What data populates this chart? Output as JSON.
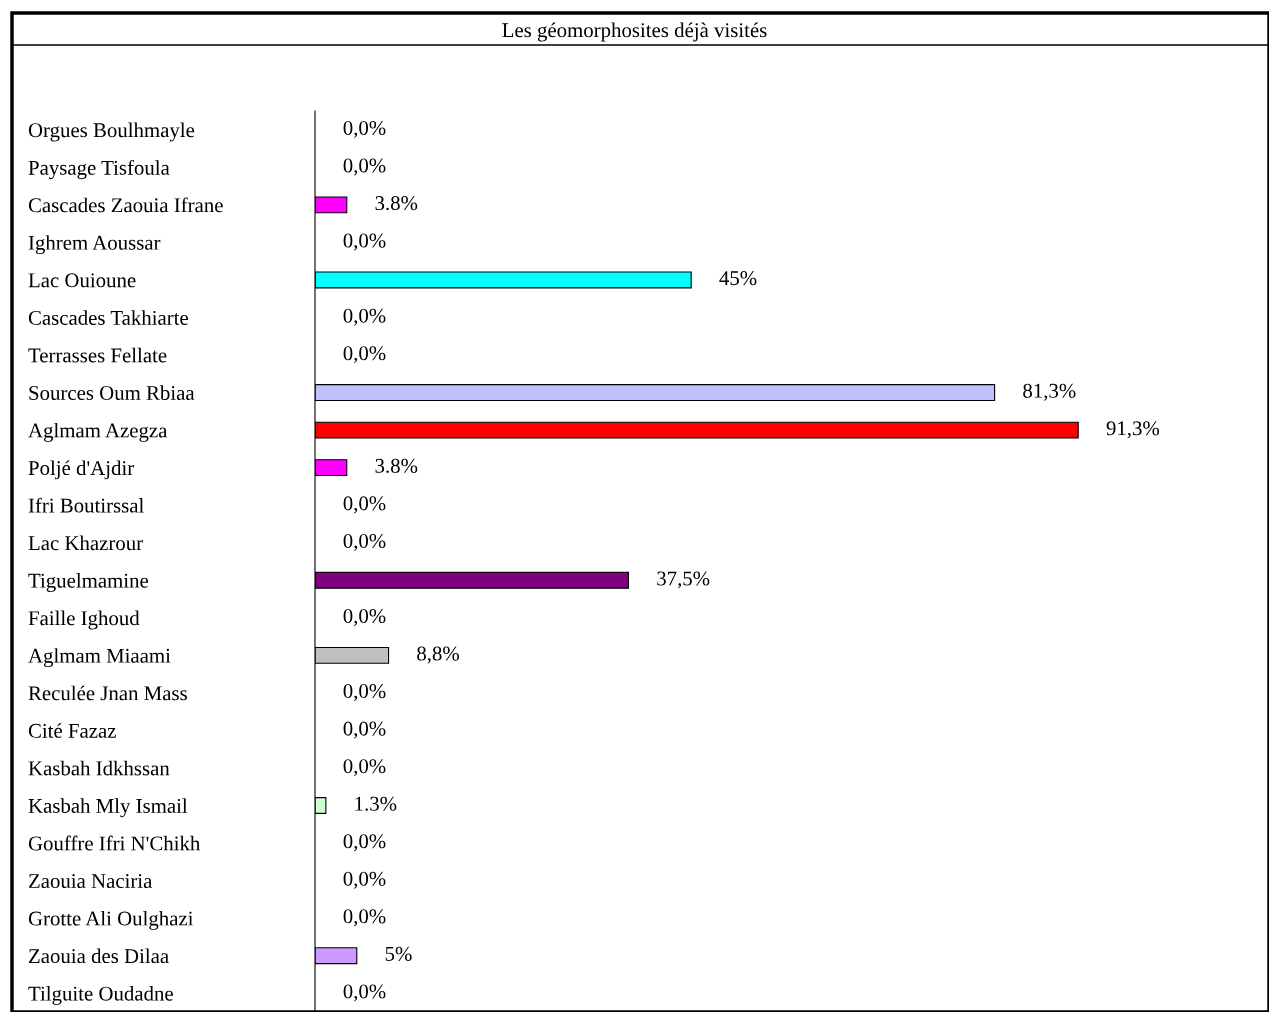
{
  "chart_data": {
    "type": "bar",
    "orientation": "horizontal",
    "title": "Les géomorphosites déjà visités",
    "categories": [
      "Orgues Boulhmayle",
      "Paysage Tisfoula",
      "Cascades Zaouia Ifrane",
      "Ighrem Aoussar",
      "Lac Ouioune",
      "Cascades Takhiarte",
      "Terrasses Fellate",
      "Sources Oum Rbiaa",
      "Aglmam Azegza",
      "Poljé d'Ajdir",
      "Ifri Boutirssal",
      "Lac Khazrour",
      "Tiguelmamine",
      "Faille Ighoud",
      "Aglmam Miaami",
      "Reculée Jnan Mass",
      "Cité Fazaz",
      "Kasbah Idkhssan",
      "Kasbah Mly Ismail",
      "Gouffre Ifri N'Chikh",
      "Zaouia Naciria",
      "Grotte Ali Oulghazi",
      "Zaouia des Dilaa",
      "Tilguite Oudadne"
    ],
    "values": [
      0,
      0,
      3.8,
      0,
      45,
      0,
      0,
      81.3,
      91.3,
      3.8,
      0,
      0,
      37.5,
      0,
      8.8,
      0,
      0,
      0,
      1.3,
      0,
      0,
      0,
      5,
      0
    ],
    "value_labels": [
      "0,0%",
      "0,0%",
      "3.8%",
      "0,0%",
      "45%",
      "0,0%",
      "0,0%",
      "81,3%",
      "91,3%",
      "3.8%",
      "0,0%",
      "0,0%",
      "37,5%",
      "0,0%",
      "8,8%",
      "0,0%",
      "0,0%",
      "0,0%",
      "1.3%",
      "0,0%",
      "0,0%",
      "0,0%",
      "5%",
      "0,0%"
    ],
    "colors": [
      "#ffffff",
      "#ffffff",
      "#ff00ff",
      "#ffffff",
      "#00ffff",
      "#ffffff",
      "#ffffff",
      "#c0c0ff",
      "#ff0000",
      "#ff00ff",
      "#ffffff",
      "#ffffff",
      "#800080",
      "#ffffff",
      "#c0c0c0",
      "#ffffff",
      "#ffffff",
      "#ffffff",
      "#ccffcc",
      "#ffffff",
      "#ffffff",
      "#ffffff",
      "#cc99ff",
      "#ffffff"
    ],
    "tick_labels": "y",
    "grid": false,
    "legend": false
  }
}
